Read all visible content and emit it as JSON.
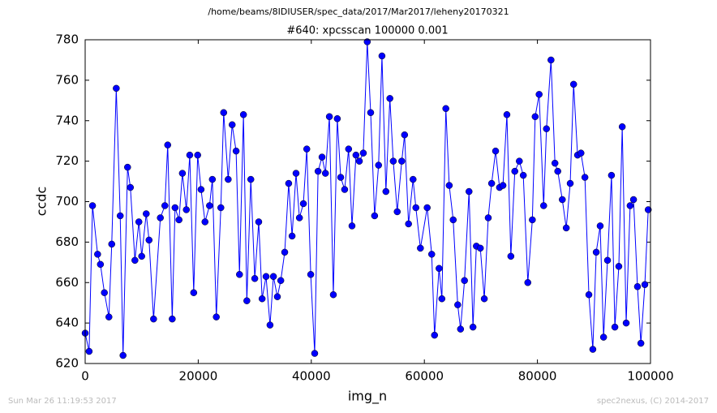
{
  "chart_data": {
    "type": "line",
    "suptitle": "/home/beams/8IDIUSER/spec_data/2017/Mar2017/leheny20170321",
    "title": "#640: xpcsscan 100000 0.001",
    "xlabel": "img_n",
    "ylabel": "ccdc",
    "footer_left": "Sun Mar 26 11:19:53 2017",
    "footer_right": "spec2nexus, (C) 2014-2017",
    "xlim": [
      0,
      100000
    ],
    "xticks": [
      0,
      20000,
      40000,
      60000,
      80000,
      100000
    ],
    "ylim": [
      620,
      780
    ],
    "yticks": [
      620,
      640,
      660,
      680,
      700,
      720,
      740,
      760,
      780
    ],
    "x": [
      0,
      700,
      1300,
      2200,
      2700,
      3400,
      4200,
      4700,
      5500,
      6200,
      6700,
      7500,
      8000,
      8800,
      9500,
      10000,
      10800,
      11300,
      12100,
      13300,
      14100,
      14600,
      15400,
      15900,
      16600,
      17200,
      17900,
      18500,
      19200,
      19900,
      20500,
      21200,
      22000,
      22500,
      23200,
      24000,
      24500,
      25300,
      26000,
      26700,
      27300,
      28000,
      28600,
      29300,
      30000,
      30700,
      31300,
      32000,
      32700,
      33300,
      34000,
      34600,
      35300,
      36000,
      36600,
      37300,
      37900,
      38600,
      39200,
      39900,
      40600,
      41200,
      41900,
      42500,
      43200,
      43900,
      44600,
      45200,
      45900,
      46600,
      47200,
      47900,
      48500,
      49200,
      49900,
      50500,
      51200,
      51900,
      52500,
      53200,
      53900,
      54500,
      55200,
      56000,
      56500,
      57200,
      58000,
      58500,
      59300,
      60500,
      61300,
      61800,
      62600,
      63100,
      63800,
      64400,
      65100,
      65900,
      66400,
      67100,
      67900,
      68600,
      69200,
      69900,
      70600,
      71300,
      71900,
      72600,
      73300,
      73900,
      74600,
      75300,
      76000,
      76800,
      77500,
      78300,
      79100,
      79600,
      80300,
      81100,
      81600,
      82400,
      83100,
      83600,
      84400,
      85100,
      85800,
      86400,
      87100,
      87700,
      88400,
      89100,
      89800,
      90400,
      91100,
      91700,
      92400,
      93100,
      93700,
      94400,
      95000,
      95700,
      96400,
      97000,
      97700,
      98300,
      99000,
      99600
    ],
    "series": [
      {
        "color": "#0000ff",
        "values": [
          635,
          626,
          698,
          674,
          669,
          655,
          643,
          679,
          756,
          693,
          624,
          717,
          707,
          671,
          690,
          673,
          694,
          681,
          642,
          692,
          698,
          728,
          642,
          697,
          691,
          714,
          696,
          723,
          655,
          723,
          706,
          690,
          698,
          711,
          643,
          697,
          744,
          711,
          738,
          725,
          664,
          743,
          651,
          711,
          662,
          690,
          652,
          663,
          639,
          663,
          653,
          661,
          675,
          709,
          683,
          714,
          692,
          699,
          726,
          664,
          625,
          715,
          722,
          714,
          742,
          654,
          741,
          712,
          706,
          726,
          688,
          723,
          720,
          724,
          779,
          744,
          693,
          718,
          772,
          705,
          751,
          720,
          695,
          720,
          733,
          689,
          711,
          697,
          677,
          697,
          674,
          634,
          667,
          652,
          746,
          708,
          691,
          649,
          637,
          661,
          705,
          638,
          678,
          677,
          652,
          692,
          709,
          725,
          707,
          708,
          743,
          673,
          715,
          720,
          713,
          660,
          691,
          742,
          753,
          698,
          736,
          770,
          719,
          715,
          701,
          687,
          709,
          758,
          723,
          724,
          712,
          654,
          627,
          675,
          688,
          633,
          671,
          713,
          638,
          668,
          737,
          640,
          698,
          701,
          658,
          630,
          659,
          696
        ]
      }
    ]
  }
}
